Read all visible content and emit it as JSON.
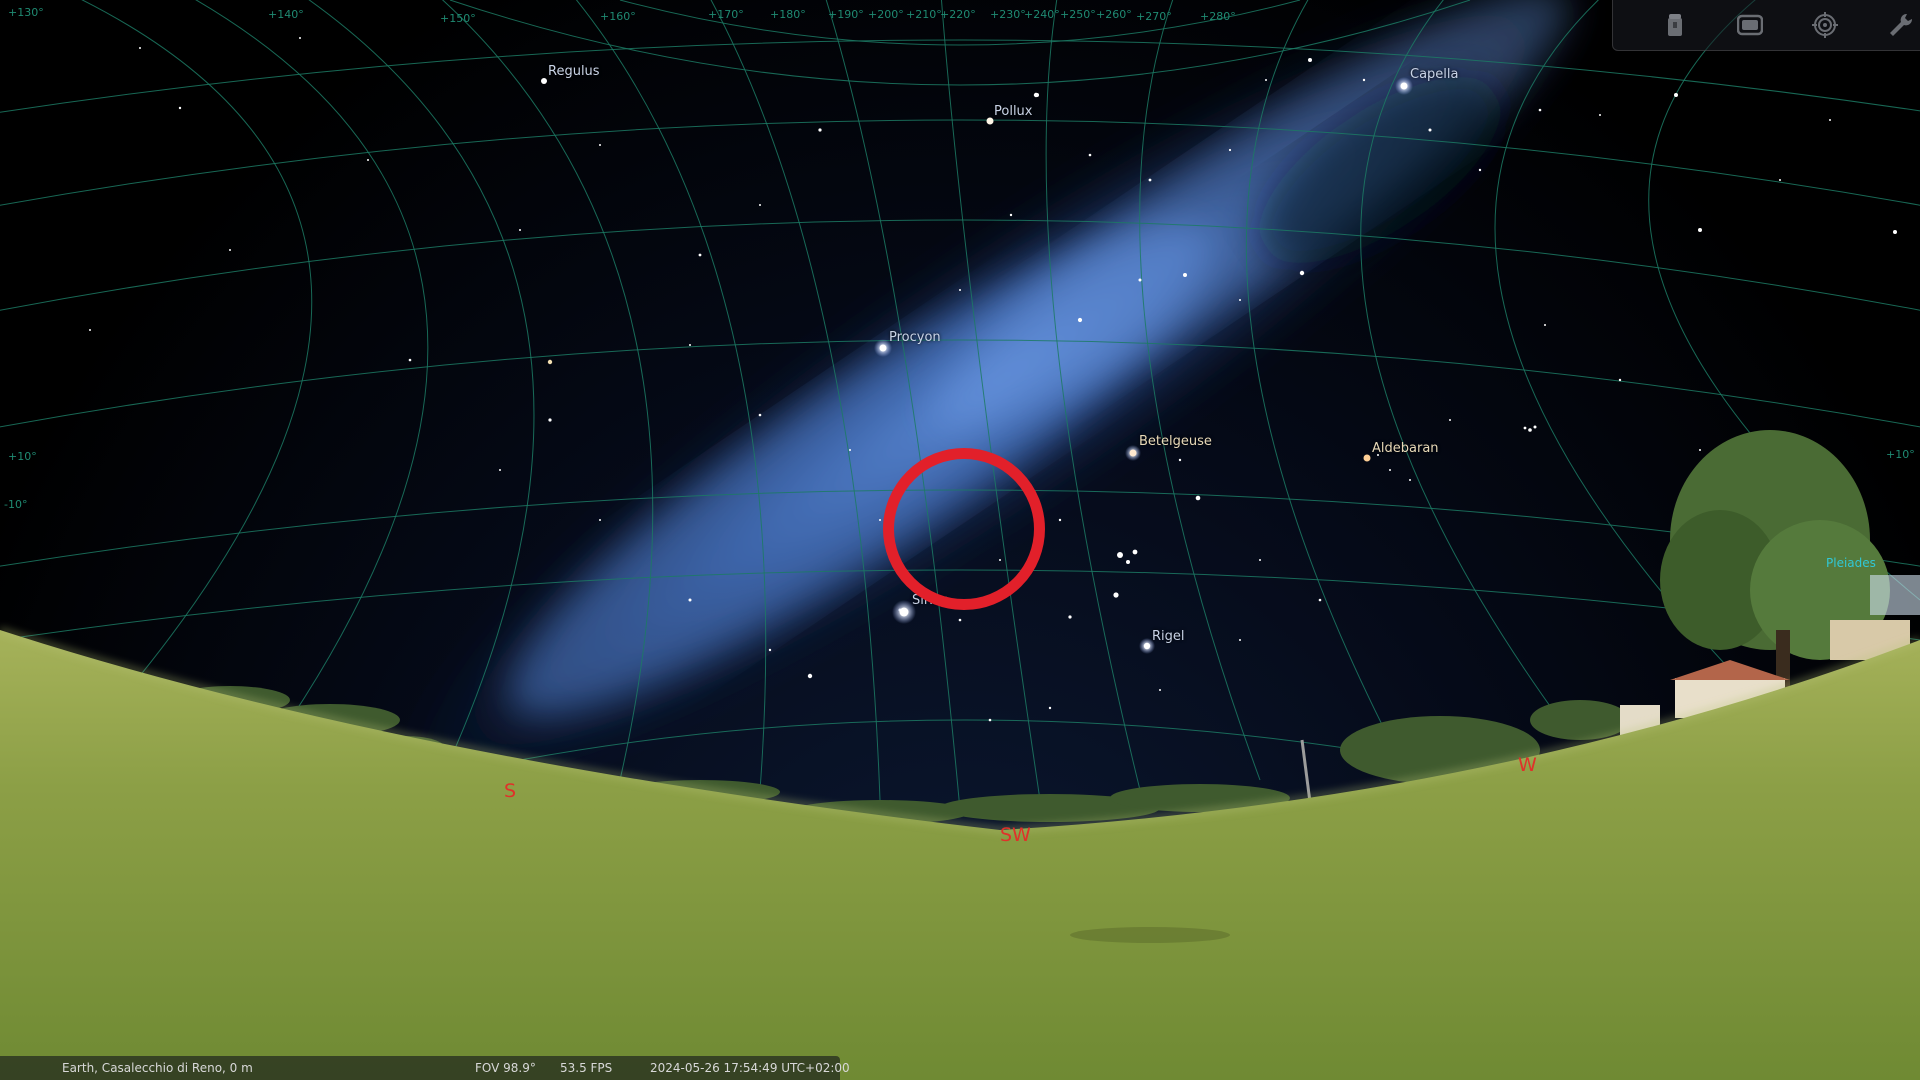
{
  "sky": {
    "stars": [
      {
        "name": "Regulus",
        "warm": false
      },
      {
        "name": "Pollux",
        "warm": false
      },
      {
        "name": "Capella",
        "warm": false
      },
      {
        "name": "Procyon",
        "warm": false
      },
      {
        "name": "Betelgeuse",
        "warm": true
      },
      {
        "name": "Aldebaran",
        "warm": true
      },
      {
        "name": "Sirius",
        "warm": false
      },
      {
        "name": "Rigel",
        "warm": false
      }
    ],
    "cardinals": [
      "S",
      "SW",
      "W"
    ],
    "azimuth_labels": [
      "+130°",
      "+140°",
      "+150°",
      "+160°",
      "+170°",
      "+180°",
      "+190°",
      "+200°",
      "+210°",
      "+220°",
      "+230°",
      "+240°",
      "+250°",
      "+260°",
      "+270°",
      "+280°"
    ],
    "altitude_labels": [
      "+10°",
      "+10°",
      "-10°"
    ],
    "partial_label": "Pleiades"
  },
  "toolbar": {
    "buttons": [
      {
        "name": "observatory-button",
        "icon": "observatory-icon"
      },
      {
        "name": "screen-button",
        "icon": "screen-icon"
      },
      {
        "name": "target-button",
        "icon": "target-icon"
      },
      {
        "name": "settings-button",
        "icon": "wrench-icon"
      }
    ]
  },
  "status_bar": {
    "location": "Earth, Casalecchio di Reno, 0 m",
    "fov": "FOV 98.9°",
    "fps": "53.5 FPS",
    "datetime": "2024-05-26 17:54:49 UTC+02:00"
  },
  "colors": {
    "grid": "#1c7a64",
    "cardinal": "#e0312a",
    "highlight": "#e2202a",
    "milky_way": "#4a7fd6",
    "grass": "#8fa54a"
  }
}
